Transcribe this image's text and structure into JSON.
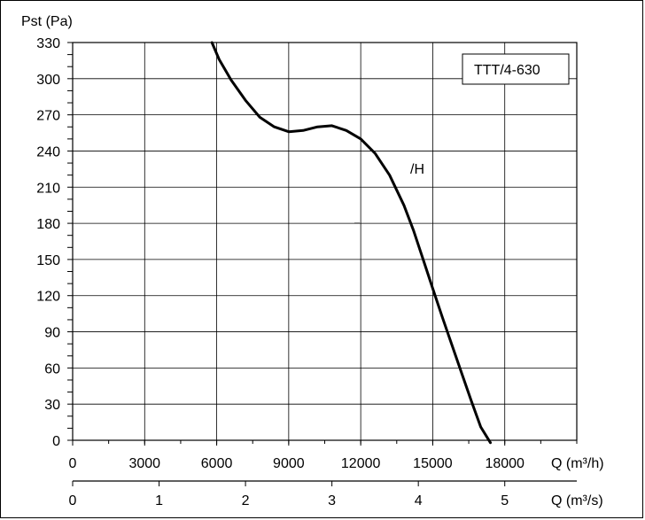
{
  "chart_data": {
    "type": "line",
    "title": "",
    "ylabel": "Pst (Pa)",
    "xlabel": "Q (m³/h)",
    "secondary_xlabel": "Q (m³/s)",
    "ylim": [
      0,
      330
    ],
    "xlim": [
      0,
      21000
    ],
    "xticks": [
      0,
      3000,
      6000,
      9000,
      12000,
      15000,
      18000
    ],
    "xtick_labels": [
      "0",
      "3000",
      "6000",
      "9000",
      "12000",
      "15000",
      "18000"
    ],
    "secondary_xticks": [
      0,
      1,
      2,
      3,
      4,
      5
    ],
    "secondary_xtick_labels": [
      "0",
      "1",
      "2",
      "3",
      "4",
      "5"
    ],
    "yticks": [
      0,
      30,
      60,
      90,
      120,
      150,
      180,
      210,
      240,
      270,
      300,
      330
    ],
    "ytick_labels": [
      "0",
      "30",
      "60",
      "90",
      "120",
      "150",
      "180",
      "210",
      "240",
      "270",
      "300",
      "330"
    ],
    "grid": true,
    "legend_box": "TTT/4-630",
    "annotation": "/H",
    "series": [
      {
        "name": "",
        "x": [
          5800,
          6100,
          6600,
          7200,
          7800,
          8400,
          9000,
          9600,
          10200,
          10800,
          11400,
          12000,
          12600,
          13200,
          13800,
          14200,
          14600,
          15000,
          15400,
          15800,
          16200,
          16600,
          17000,
          17400
        ],
        "y": [
          330,
          316,
          299,
          282,
          268,
          260,
          256,
          257,
          260,
          261,
          257,
          250,
          238,
          220,
          195,
          174,
          150,
          126,
          102,
          79,
          56,
          33,
          11,
          -2
        ]
      }
    ]
  }
}
